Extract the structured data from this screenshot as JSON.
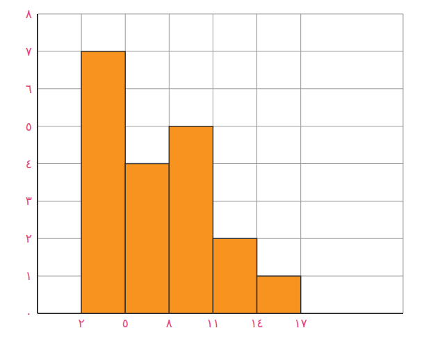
{
  "chart_data": {
    "type": "histogram",
    "bins": [
      2,
      5,
      8,
      11,
      14,
      17
    ],
    "values": [
      7,
      4,
      5,
      2,
      1
    ],
    "color": "#f7931e",
    "xlim": [
      -1,
      24
    ],
    "xticks": [
      {
        "value": 2,
        "label": "٢"
      },
      {
        "value": 5,
        "label": "٥"
      },
      {
        "value": 8,
        "label": "٨"
      },
      {
        "value": 11,
        "label": "١١"
      },
      {
        "value": 14,
        "label": "١٤"
      },
      {
        "value": 17,
        "label": "١٧"
      }
    ],
    "ylim": [
      0,
      8
    ],
    "yticks": [
      {
        "value": 0,
        "label": "٠"
      },
      {
        "value": 1,
        "label": "١"
      },
      {
        "value": 2,
        "label": "٢"
      },
      {
        "value": 3,
        "label": "٣"
      },
      {
        "value": 4,
        "label": "٤"
      },
      {
        "value": 5,
        "label": "٥"
      },
      {
        "value": 6,
        "label": "٦"
      },
      {
        "value": 7,
        "label": "٧"
      },
      {
        "value": 8,
        "label": "٨"
      }
    ],
    "grid": true
  }
}
